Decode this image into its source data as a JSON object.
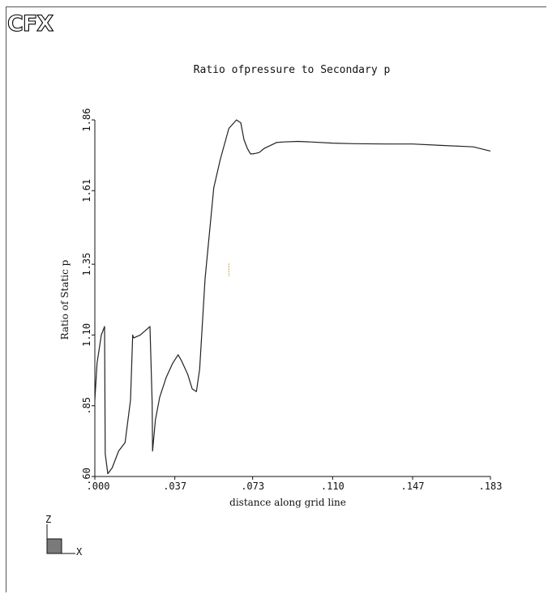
{
  "app": {
    "logo": "CFX"
  },
  "chart_data": {
    "type": "line",
    "title": "Ratio ofpressure to Secondary p",
    "xlabel": "distance along grid line",
    "ylabel": "Ratio of Static p",
    "xlim": [
      0.0,
      0.183
    ],
    "ylim": [
      0.6,
      1.86
    ],
    "xticks": [
      ".000",
      ".037",
      ".073",
      ".110",
      ".147",
      ".183"
    ],
    "xtick_values": [
      0.0,
      0.037,
      0.073,
      0.11,
      0.147,
      0.183
    ],
    "yticks": [
      ".60",
      ".85",
      "1.10",
      "1.35",
      "1.61",
      "1.86"
    ],
    "ytick_values": [
      0.6,
      0.85,
      1.1,
      1.35,
      1.61,
      1.86
    ],
    "grid": false,
    "series": [
      {
        "x": [
          0.0,
          0.001,
          0.003,
          0.0045,
          0.0048,
          0.006,
          0.008,
          0.011,
          0.014,
          0.0165,
          0.0175,
          0.018,
          0.021,
          0.0255,
          0.0265,
          0.0267,
          0.028,
          0.03,
          0.033,
          0.036,
          0.0385,
          0.04,
          0.043,
          0.045,
          0.047,
          0.0485,
          0.051,
          0.055,
          0.058,
          0.062,
          0.0655,
          0.0675,
          0.069,
          0.0705,
          0.072,
          0.073,
          0.0745,
          0.076,
          0.0785,
          0.084,
          0.087,
          0.094,
          0.1,
          0.11,
          0.12,
          0.135,
          0.147,
          0.16,
          0.175,
          0.183
        ],
        "y": [
          0.87,
          1.0,
          1.1,
          1.13,
          0.68,
          0.61,
          0.63,
          0.69,
          0.72,
          0.87,
          1.1,
          1.09,
          1.1,
          1.13,
          0.86,
          0.69,
          0.8,
          0.88,
          0.95,
          1.0,
          1.03,
          1.01,
          0.96,
          0.91,
          0.9,
          0.98,
          1.3,
          1.62,
          1.72,
          1.83,
          1.86,
          1.85,
          1.79,
          1.76,
          1.74,
          1.74,
          1.742,
          1.745,
          1.76,
          1.78,
          1.782,
          1.784,
          1.782,
          1.778,
          1.776,
          1.775,
          1.775,
          1.77,
          1.765,
          1.75
        ]
      }
    ],
    "marker": {
      "x": 0.062,
      "y": 1.33,
      "color": "#d4a040"
    }
  },
  "triad": {
    "z_label": "Z",
    "x_label": "X",
    "box_color": "#7a7a7a"
  }
}
